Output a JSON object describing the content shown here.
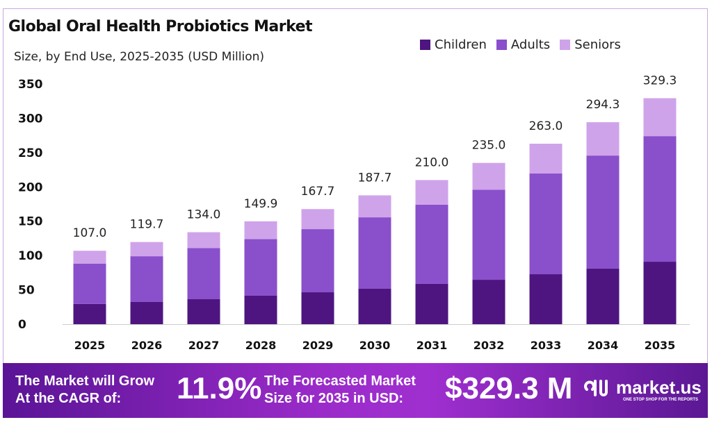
{
  "chart_data": {
    "type": "stacked-bar",
    "title": "Global Oral Health Probiotics Market",
    "subtitle": "Size, by End Use, 2025-2035 (USD Million)",
    "categories": [
      "2025",
      "2026",
      "2027",
      "2028",
      "2029",
      "2030",
      "2031",
      "2032",
      "2033",
      "2034",
      "2035"
    ],
    "series": [
      {
        "name": "Children",
        "color": "#4e1580",
        "values": [
          29.5,
          32.4,
          36.4,
          41.5,
          46.5,
          51.6,
          58.7,
          64.7,
          72.8,
          81.0,
          91.0
        ]
      },
      {
        "name": "Adults",
        "color": "#8a4fcb",
        "values": [
          58.8,
          66.6,
          74.6,
          82.5,
          92.0,
          104.1,
          115.3,
          131.3,
          146.7,
          164.7,
          183.0
        ]
      },
      {
        "name": "Seniors",
        "color": "#cfa3ea",
        "values": [
          18.7,
          20.7,
          23.0,
          25.9,
          29.2,
          32.0,
          36.0,
          39.0,
          43.5,
          48.6,
          55.3
        ]
      }
    ],
    "totals": [
      "107.0",
      "119.7",
      "134.0",
      "149.9",
      "167.7",
      "187.7",
      "210.0",
      "235.0",
      "263.0",
      "294.3",
      "329.3"
    ],
    "yticks": [
      "0",
      "50",
      "100",
      "150",
      "200",
      "250",
      "300",
      "350"
    ],
    "ylim": [
      0,
      350
    ],
    "grid": false,
    "legend": "top-right"
  },
  "banner": {
    "cagr_label_1": "The Market will Grow",
    "cagr_label_2": "At the CAGR of:",
    "cagr_value": "11.9%",
    "forecast_label_1": "The Forecasted Market",
    "forecast_label_2": "Size for 2035 in USD:",
    "forecast_value": "$329.3 M",
    "logo_text": "market.us",
    "logo_tagline": "ONE STOP SHOP FOR THE REPORTS"
  }
}
